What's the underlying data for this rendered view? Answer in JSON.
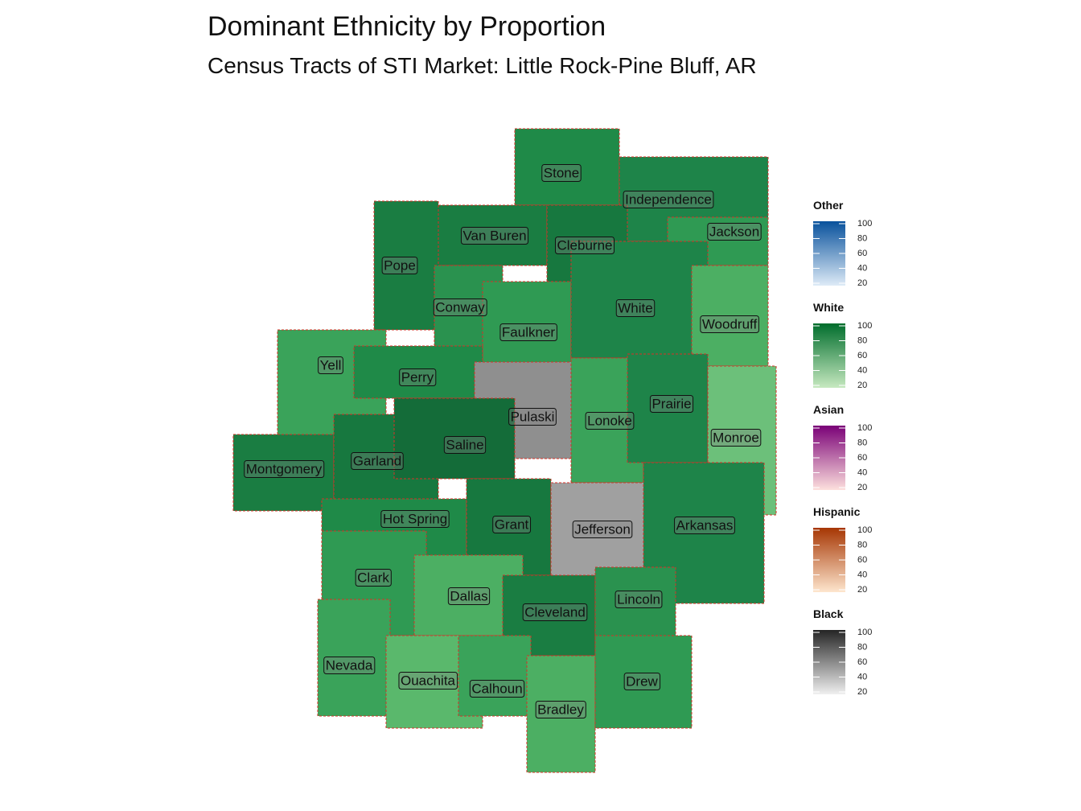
{
  "header": {
    "title": "Dominant Ethnicity by Proportion",
    "subtitle": "Census Tracts of STI Market: Little Rock-Pine Bluff, AR"
  },
  "map": {
    "counties": [
      {
        "name": "Stone"
      },
      {
        "name": "Independence"
      },
      {
        "name": "Van Buren"
      },
      {
        "name": "Cleburne"
      },
      {
        "name": "Jackson"
      },
      {
        "name": "Pope"
      },
      {
        "name": "Conway"
      },
      {
        "name": "Faulkner"
      },
      {
        "name": "White"
      },
      {
        "name": "Woodruff"
      },
      {
        "name": "Yell"
      },
      {
        "name": "Perry"
      },
      {
        "name": "Pulaski"
      },
      {
        "name": "Lonoke"
      },
      {
        "name": "Prairie"
      },
      {
        "name": "Monroe"
      },
      {
        "name": "Montgomery"
      },
      {
        "name": "Garland"
      },
      {
        "name": "Saline"
      },
      {
        "name": "Hot Spring"
      },
      {
        "name": "Grant"
      },
      {
        "name": "Jefferson"
      },
      {
        "name": "Arkansas"
      },
      {
        "name": "Clark"
      },
      {
        "name": "Dallas"
      },
      {
        "name": "Cleveland"
      },
      {
        "name": "Lincoln"
      },
      {
        "name": "Nevada"
      },
      {
        "name": "Ouachita"
      },
      {
        "name": "Calhoun"
      },
      {
        "name": "Bradley"
      },
      {
        "name": "Drew"
      }
    ]
  },
  "legends": [
    {
      "title": "Other",
      "colors": [
        "#deebf7",
        "#08519c"
      ],
      "ticks": [
        100,
        80,
        60,
        40,
        20
      ]
    },
    {
      "title": "White",
      "colors": [
        "#c7e9c0",
        "#006d2c"
      ],
      "ticks": [
        100,
        80,
        60,
        40,
        20
      ]
    },
    {
      "title": "Asian",
      "colors": [
        "#fde0dd",
        "#7a0177"
      ],
      "ticks": [
        100,
        80,
        60,
        40,
        20
      ]
    },
    {
      "title": "Hispanic",
      "colors": [
        "#fee6ce",
        "#a63603"
      ],
      "ticks": [
        100,
        80,
        60,
        40,
        20
      ]
    },
    {
      "title": "Black",
      "colors": [
        "#f0f0f0",
        "#252525"
      ],
      "ticks": [
        100,
        80,
        60,
        40,
        20
      ]
    }
  ]
}
